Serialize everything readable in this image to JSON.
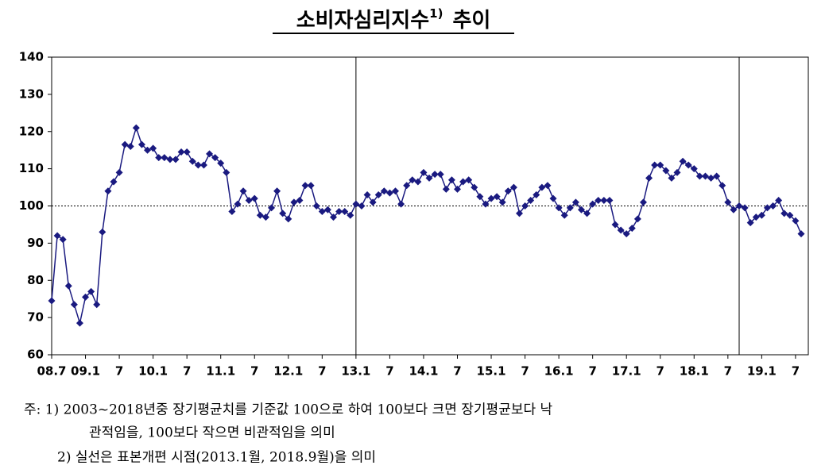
{
  "chart_data": {
    "type": "line",
    "title": "소비자심리지수",
    "title_sup": "1)",
    "title_suffix": "추이",
    "categories": [
      "08.7",
      null,
      null,
      null,
      null,
      null,
      "09.1",
      null,
      null,
      null,
      null,
      null,
      "7",
      null,
      null,
      null,
      null,
      null,
      "10.1",
      null,
      null,
      null,
      null,
      null,
      "7",
      null,
      null,
      null,
      null,
      null,
      "11.1",
      null,
      null,
      null,
      null,
      null,
      "7",
      null,
      null,
      null,
      null,
      null,
      "12.1",
      null,
      null,
      null,
      null,
      null,
      "7",
      null,
      null,
      null,
      null,
      null,
      "13.1",
      null,
      null,
      null,
      null,
      null,
      "7",
      null,
      null,
      null,
      null,
      null,
      "14.1",
      null,
      null,
      null,
      null,
      null,
      "7",
      null,
      null,
      null,
      null,
      null,
      "15.1",
      null,
      null,
      null,
      null,
      null,
      "7",
      null,
      null,
      null,
      null,
      null,
      "16.1",
      null,
      null,
      null,
      null,
      null,
      "7",
      null,
      null,
      null,
      null,
      null,
      "17.1",
      null,
      null,
      null,
      null,
      null,
      "7",
      null,
      null,
      null,
      null,
      null,
      "18.1",
      null,
      null,
      null,
      null,
      null,
      "7",
      null,
      null,
      null,
      null,
      null,
      "19.1",
      null,
      null,
      null,
      null,
      null,
      "7",
      null
    ],
    "series": [
      {
        "color": "#1a1a80",
        "values": [
          74.5,
          92,
          91,
          78.5,
          73.5,
          68.5,
          75.5,
          77,
          73.5,
          93,
          104,
          106.5,
          109,
          116.5,
          116,
          121,
          116.5,
          115,
          115.5,
          113,
          113,
          112.5,
          112.5,
          114.5,
          114.5,
          112,
          111,
          111,
          114,
          113,
          111.5,
          109,
          98.5,
          100.5,
          104,
          101.5,
          102,
          97.5,
          97,
          99.5,
          104,
          98,
          96.5,
          101,
          101.5,
          105.5,
          105.5,
          100,
          98.5,
          99,
          97,
          98.5,
          98.5,
          97.5,
          100.5,
          100,
          103,
          101,
          103,
          104,
          103.5,
          104,
          100.5,
          105.5,
          107,
          106.5,
          109,
          107.5,
          108.5,
          108.5,
          104.5,
          107,
          104.5,
          106.5,
          107,
          105,
          102.5,
          100.5,
          102,
          102.5,
          101,
          104,
          105,
          98,
          100,
          101.5,
          103,
          105,
          105.5,
          102,
          99.5,
          97.5,
          99.5,
          101,
          99,
          98,
          100.5,
          101.5,
          101.5,
          101.5,
          95,
          93.5,
          92.5,
          94,
          96.5,
          101,
          107.5,
          111,
          111,
          109.5,
          107.5,
          109,
          112,
          111,
          110,
          108,
          108,
          107.5,
          108,
          105.5,
          101,
          99,
          100,
          99.5,
          95.5,
          97,
          97.5,
          99.5,
          100,
          101.5,
          98,
          97.5,
          96,
          92.5
        ]
      }
    ],
    "ylim": [
      60,
      140
    ],
    "yticks": [
      60,
      70,
      80,
      90,
      100,
      110,
      120,
      130,
      140
    ],
    "reference_line": 100,
    "vline_indices": [
      54,
      122
    ],
    "notes": [
      "주: 1) 2003~2018년중 장기평균치를 기준값 100으로 하여 100보다 크면 장기평균보다 낙",
      "관적임을, 100보다 작으면 비관적임을 의미",
      "2) 실선은 표본개편 시점(2013.1월, 2018.9월)을 의미"
    ]
  }
}
